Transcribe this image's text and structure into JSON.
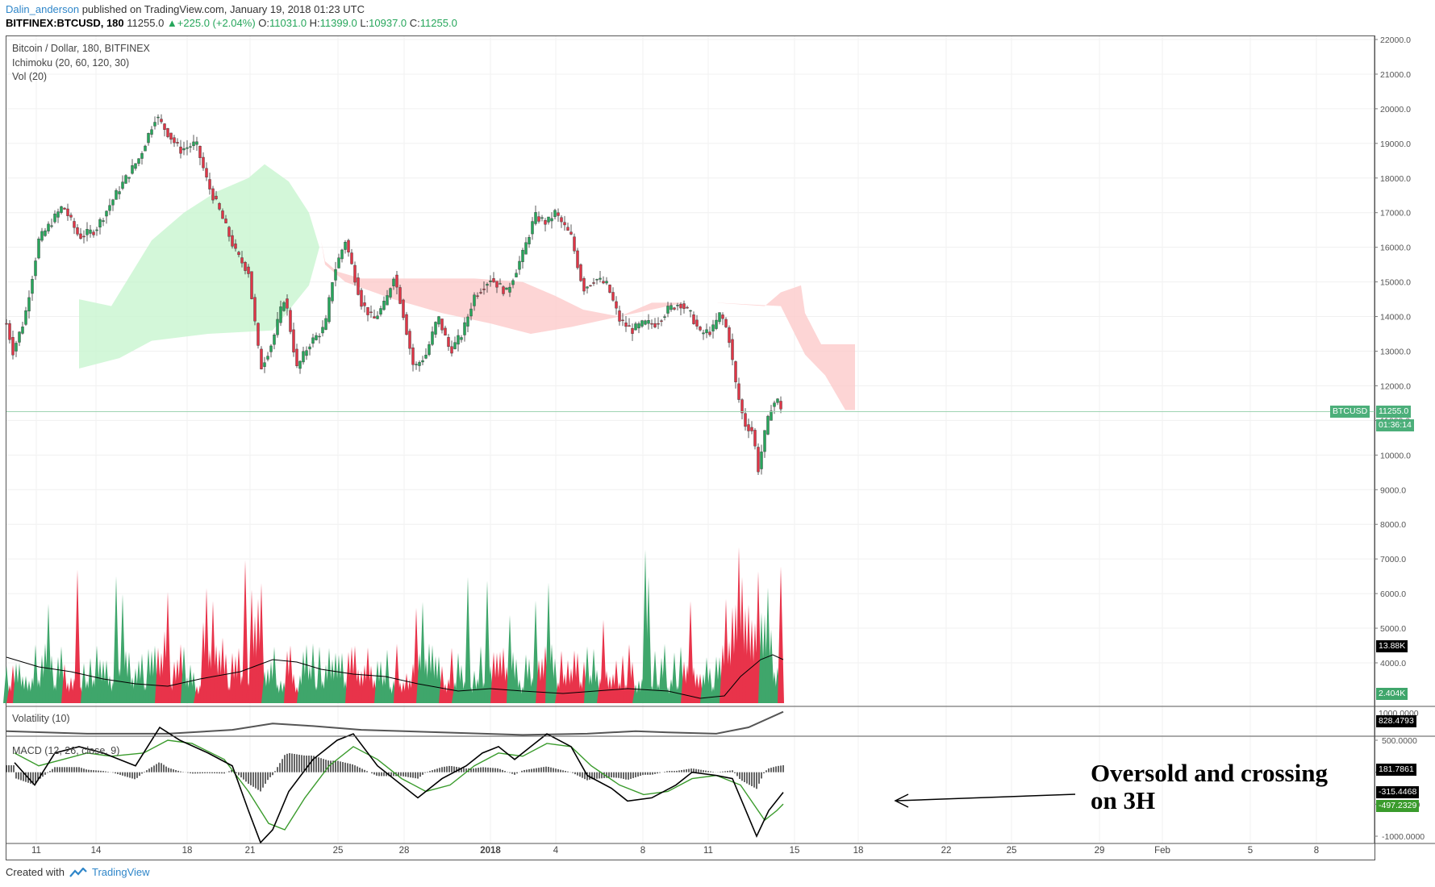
{
  "header": {
    "author": "Dalin_anderson",
    "published": "published on TradingView.com, January 19, 2018 01:23 UTC",
    "symbol": "BITFINEX:BTCUSD, 180",
    "price": "11255.0",
    "change": "+225.0 (+2.04%)",
    "open_label": "O:",
    "open": "11031.0",
    "high_label": "H:",
    "high": "11399.0",
    "low_label": "L:",
    "low": "10937.0",
    "close_label": "C:",
    "close": "11255.0"
  },
  "legend": {
    "title": "Bitcoin / Dollar, 180, BITFINEX",
    "ichimoku": "Ichimoku (20, 60, 120, 30)",
    "vol": "Vol (20)",
    "volatility": "Volatility (10)",
    "macd": "MACD (12, 26, close, 9)"
  },
  "badges": {
    "symbol": "BTCUSD",
    "last_price": "11255.0",
    "countdown": "01:36:14",
    "vol_ma": "13.88K",
    "vol_last": "2.404K",
    "volatility_value": "828.4793",
    "macd_hist": "181.7861",
    "macd_line": "-315.4468",
    "macd_signal": "-497.2329",
    "volatility_top_tick": "1000.0000"
  },
  "annotation": {
    "line1": "Oversold and crossing",
    "line2": "on 3H"
  },
  "footer": {
    "created_with": "Created with",
    "brand": "TradingView"
  },
  "colors": {
    "bull": "#26a65b",
    "bear": "#e03546",
    "kumo_bull": "#c8f5cf",
    "kumo_bear": "#fccbcb",
    "volume_bull": "#3fa66b",
    "volume_bear": "#e8334a",
    "macd_line": "#000000",
    "macd_signal": "#3a9b2c",
    "volatility_line": "#555555"
  },
  "chart_data": {
    "type": "candlestick",
    "x_ticks": [
      "11",
      "14",
      "18",
      "21",
      "25",
      "28",
      "2018",
      "4",
      "8",
      "11",
      "15",
      "18",
      "22",
      "25",
      "29",
      "Feb",
      "5",
      "8"
    ],
    "price_ticks": [
      "22000.0",
      "21000.0",
      "20000.0",
      "19000.0",
      "18000.0",
      "17000.0",
      "16000.0",
      "15000.0",
      "14000.0",
      "13000.0",
      "12000.0",
      "11000.0",
      "10000.0",
      "9000.0",
      "8000.0",
      "7000.0",
      "6000.0",
      "5000.0",
      "4000.0"
    ],
    "price_range": [
      3500,
      22100
    ],
    "macd_ticks": [
      "500.0000",
      "0.0000",
      "-500.0000",
      "-1000.0000"
    ],
    "price_path": [
      [
        0,
        13800
      ],
      [
        8,
        13000
      ],
      [
        22,
        13900
      ],
      [
        40,
        16200
      ],
      [
        55,
        16700
      ],
      [
        70,
        17200
      ],
      [
        90,
        16300
      ],
      [
        110,
        16500
      ],
      [
        140,
        17700
      ],
      [
        165,
        18600
      ],
      [
        185,
        19800
      ],
      [
        200,
        19300
      ],
      [
        215,
        18800
      ],
      [
        235,
        19000
      ],
      [
        250,
        17800
      ],
      [
        265,
        17000
      ],
      [
        285,
        15800
      ],
      [
        300,
        15300
      ],
      [
        315,
        12500
      ],
      [
        330,
        13300
      ],
      [
        345,
        14600
      ],
      [
        360,
        12500
      ],
      [
        375,
        13200
      ],
      [
        395,
        13700
      ],
      [
        405,
        15200
      ],
      [
        420,
        16200
      ],
      [
        440,
        14400
      ],
      [
        455,
        13900
      ],
      [
        470,
        14400
      ],
      [
        480,
        15200
      ],
      [
        490,
        14300
      ],
      [
        505,
        12500
      ],
      [
        520,
        12900
      ],
      [
        535,
        14000
      ],
      [
        550,
        13000
      ],
      [
        565,
        13500
      ],
      [
        580,
        14600
      ],
      [
        600,
        15100
      ],
      [
        620,
        14700
      ],
      [
        640,
        15800
      ],
      [
        655,
        16900
      ],
      [
        670,
        16700
      ],
      [
        680,
        17000
      ],
      [
        700,
        16300
      ],
      [
        715,
        14800
      ],
      [
        730,
        15100
      ],
      [
        745,
        14900
      ],
      [
        760,
        13900
      ],
      [
        775,
        13600
      ],
      [
        790,
        13800
      ],
      [
        805,
        13800
      ],
      [
        820,
        14200
      ],
      [
        835,
        14400
      ],
      [
        850,
        14000
      ],
      [
        860,
        13500
      ],
      [
        875,
        13600
      ],
      [
        885,
        14100
      ],
      [
        895,
        13500
      ],
      [
        905,
        11900
      ],
      [
        915,
        10900
      ],
      [
        925,
        10700
      ],
      [
        932,
        9600
      ],
      [
        940,
        10600
      ],
      [
        948,
        11400
      ],
      [
        955,
        11600
      ],
      [
        963,
        11255
      ]
    ],
    "kumo_bull": [
      [
        90,
        12500
      ],
      [
        90,
        14500
      ],
      [
        130,
        14300
      ],
      [
        180,
        16200
      ],
      [
        220,
        17000
      ],
      [
        260,
        17600
      ],
      [
        300,
        18000
      ],
      [
        320,
        18400
      ],
      [
        350,
        17900
      ],
      [
        375,
        17000
      ],
      [
        388,
        16000
      ],
      [
        375,
        14900
      ],
      [
        330,
        13600
      ],
      [
        250,
        13500
      ],
      [
        180,
        13300
      ],
      [
        140,
        12800
      ],
      [
        90,
        12500
      ]
    ],
    "kumo_bear": [
      [
        390,
        16200
      ],
      [
        395,
        15600
      ],
      [
        410,
        15300
      ],
      [
        440,
        15100
      ],
      [
        500,
        15100
      ],
      [
        580,
        15100
      ],
      [
        640,
        15000
      ],
      [
        680,
        14600
      ],
      [
        715,
        14200
      ],
      [
        760,
        14000
      ],
      [
        840,
        14400
      ],
      [
        880,
        14400
      ],
      [
        940,
        14300
      ],
      [
        960,
        14700
      ],
      [
        985,
        14900
      ],
      [
        990,
        14100
      ],
      [
        1010,
        13200
      ],
      [
        1052,
        13200
      ],
      [
        1052,
        11300
      ],
      [
        1040,
        11300
      ],
      [
        1015,
        12300
      ],
      [
        990,
        12900
      ],
      [
        960,
        14300
      ],
      [
        880,
        14400
      ],
      [
        800,
        14400
      ],
      [
        760,
        14000
      ],
      [
        700,
        13700
      ],
      [
        650,
        13500
      ],
      [
        600,
        13800
      ],
      [
        540,
        14100
      ],
      [
        480,
        14500
      ],
      [
        420,
        15000
      ],
      [
        395,
        15500
      ],
      [
        390,
        16200
      ]
    ],
    "volume_ma": [
      [
        0,
        4900
      ],
      [
        40,
        4500
      ],
      [
        80,
        4300
      ],
      [
        120,
        4000
      ],
      [
        160,
        3800
      ],
      [
        200,
        3700
      ],
      [
        240,
        4000
      ],
      [
        290,
        4300
      ],
      [
        330,
        4800
      ],
      [
        360,
        4700
      ],
      [
        390,
        4400
      ],
      [
        430,
        4200
      ],
      [
        470,
        4100
      ],
      [
        510,
        3800
      ],
      [
        560,
        3500
      ],
      [
        600,
        3600
      ],
      [
        640,
        3500
      ],
      [
        690,
        3400
      ],
      [
        730,
        3500
      ],
      [
        770,
        3600
      ],
      [
        820,
        3500
      ],
      [
        860,
        3200
      ],
      [
        890,
        3300
      ],
      [
        910,
        4100
      ],
      [
        935,
        4800
      ],
      [
        950,
        5000
      ],
      [
        963,
        4800
      ]
    ],
    "macd_line": [
      [
        10,
        150
      ],
      [
        35,
        -200
      ],
      [
        60,
        300
      ],
      [
        90,
        400
      ],
      [
        120,
        300
      ],
      [
        160,
        100
      ],
      [
        190,
        700
      ],
      [
        215,
        500
      ],
      [
        250,
        300
      ],
      [
        280,
        100
      ],
      [
        300,
        -600
      ],
      [
        315,
        -1100
      ],
      [
        330,
        -900
      ],
      [
        350,
        -300
      ],
      [
        380,
        200
      ],
      [
        410,
        500
      ],
      [
        430,
        600
      ],
      [
        460,
        100
      ],
      [
        490,
        -200
      ],
      [
        510,
        -400
      ],
      [
        540,
        -100
      ],
      [
        570,
        100
      ],
      [
        590,
        300
      ],
      [
        610,
        400
      ],
      [
        630,
        200
      ],
      [
        650,
        400
      ],
      [
        670,
        600
      ],
      [
        700,
        400
      ],
      [
        720,
        -50
      ],
      [
        750,
        -250
      ],
      [
        770,
        -450
      ],
      [
        800,
        -400
      ],
      [
        830,
        -200
      ],
      [
        850,
        0
      ],
      [
        880,
        -50
      ],
      [
        900,
        -100
      ],
      [
        920,
        -700
      ],
      [
        930,
        -1000
      ],
      [
        945,
        -600
      ],
      [
        963,
        -315
      ]
    ],
    "macd_signal": [
      [
        10,
        300
      ],
      [
        40,
        100
      ],
      [
        70,
        200
      ],
      [
        100,
        300
      ],
      [
        130,
        250
      ],
      [
        170,
        300
      ],
      [
        200,
        500
      ],
      [
        230,
        450
      ],
      [
        270,
        200
      ],
      [
        300,
        -300
      ],
      [
        325,
        -800
      ],
      [
        345,
        -900
      ],
      [
        370,
        -400
      ],
      [
        400,
        100
      ],
      [
        430,
        400
      ],
      [
        460,
        200
      ],
      [
        490,
        -100
      ],
      [
        520,
        -300
      ],
      [
        550,
        -200
      ],
      [
        580,
        100
      ],
      [
        610,
        300
      ],
      [
        640,
        250
      ],
      [
        670,
        450
      ],
      [
        700,
        400
      ],
      [
        725,
        100
      ],
      [
        760,
        -200
      ],
      [
        790,
        -350
      ],
      [
        820,
        -300
      ],
      [
        850,
        -100
      ],
      [
        880,
        -50
      ],
      [
        910,
        -200
      ],
      [
        940,
        -750
      ],
      [
        955,
        -600
      ],
      [
        963,
        -497
      ]
    ],
    "volatility_line": [
      [
        0,
        -700
      ],
      [
        100,
        -900
      ],
      [
        200,
        -900
      ],
      [
        280,
        -600
      ],
      [
        330,
        -100
      ],
      [
        380,
        -300
      ],
      [
        440,
        -600
      ],
      [
        540,
        -800
      ],
      [
        640,
        -1000
      ],
      [
        720,
        -900
      ],
      [
        780,
        -700
      ],
      [
        820,
        -800
      ],
      [
        880,
        -900
      ],
      [
        920,
        -400
      ],
      [
        963,
        828
      ]
    ]
  }
}
